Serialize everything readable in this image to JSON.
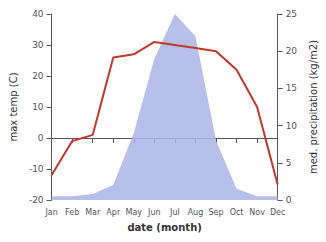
{
  "chart_data": {
    "type": "line",
    "categories": [
      "Jan",
      "Feb",
      "Mar",
      "Apr",
      "May",
      "Jun",
      "Jul",
      "Aug",
      "Sep",
      "Oct",
      "Nov",
      "Dec"
    ],
    "xlabel": "date (month)",
    "ylabel": "max temp (C)",
    "y2label": "med. precipitation (kg/m2)",
    "series": [
      {
        "type": "area",
        "axis": "y2",
        "color": "#aab4e8",
        "values": [
          0.5,
          0.5,
          0.8,
          2.0,
          9,
          19,
          25,
          22,
          8,
          1.5,
          0.5,
          0.5
        ]
      },
      {
        "type": "line",
        "color": "#c0392b",
        "values": [
          -12,
          -1,
          1,
          26,
          27,
          31,
          30,
          29,
          28,
          22,
          10,
          -15
        ]
      }
    ],
    "ylim": [
      -20,
      40
    ],
    "yticks": [
      -20,
      -10,
      0,
      10,
      20,
      30,
      40
    ],
    "y2lim": [
      0,
      25
    ],
    "y2ticks": [
      0,
      5,
      10,
      15,
      20,
      25
    ],
    "grid": false
  }
}
